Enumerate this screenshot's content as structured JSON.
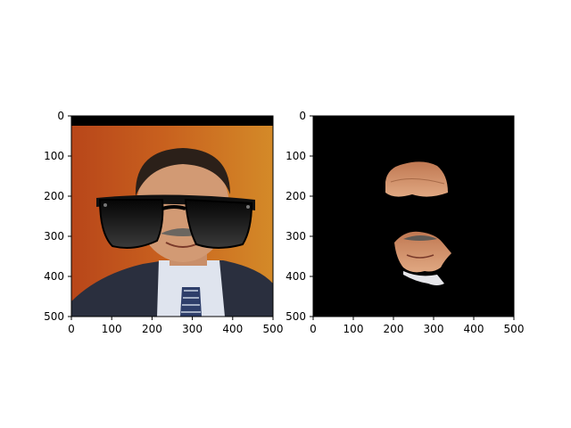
{
  "chart_data": [
    {
      "type": "image",
      "title": "",
      "xlabel": "",
      "ylabel": "",
      "xlim": [
        0,
        500
      ],
      "ylim": [
        500,
        0
      ],
      "xticks": [
        0,
        100,
        200,
        300,
        400,
        500
      ],
      "yticks": [
        0,
        100,
        200,
        300,
        400,
        500
      ],
      "grid": false,
      "content": "photo of a man in a suit with black sunglasses overlaid on the eyes",
      "colors": {
        "background": "#c8601e",
        "suit": "#2a2f3e",
        "lens": "#111111",
        "skin": "#d7a07a"
      }
    },
    {
      "type": "image",
      "title": "",
      "xlabel": "",
      "ylabel": "",
      "xlim": [
        0,
        500
      ],
      "ylim": [
        500,
        0
      ],
      "xticks": [
        0,
        100,
        200,
        300,
        400,
        500
      ],
      "yticks": [
        0,
        100,
        200,
        300,
        400,
        500
      ],
      "grid": false,
      "content": "masked face: black background with forehead and mouth regions of the face visible",
      "colors": {
        "background": "#000000",
        "skin": "#d08a5a"
      }
    }
  ]
}
